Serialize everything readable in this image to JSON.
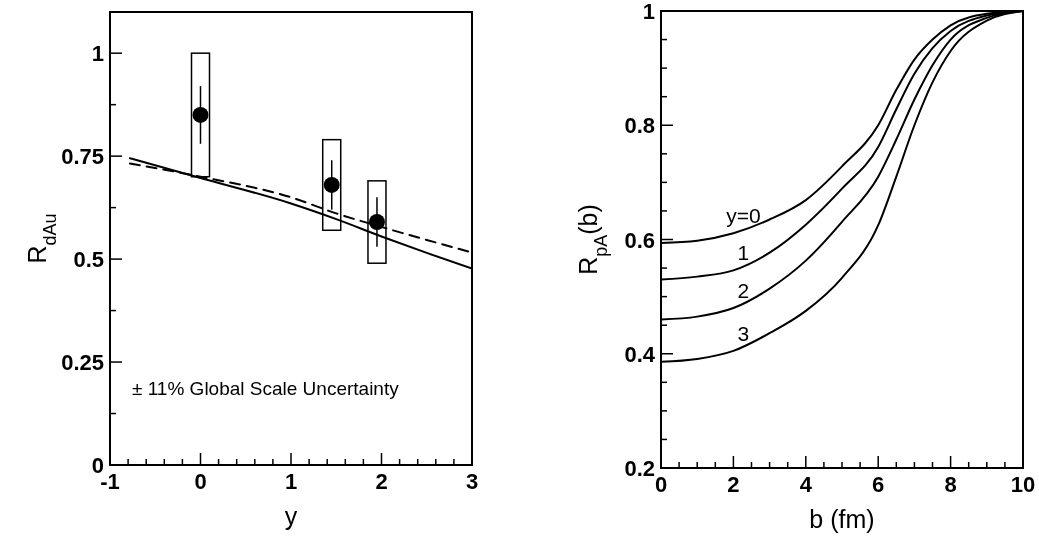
{
  "chart_data": [
    {
      "type": "line",
      "xlabel": "y",
      "ylabel": "R$_{dAu}$",
      "xlim": [
        -1,
        3
      ],
      "ylim": [
        0,
        1.1
      ],
      "grid": false,
      "legend": false,
      "xticks": [
        -1,
        {
          "value": -0.8,
          "label": null
        },
        {
          "value": -0.6,
          "label": null
        },
        {
          "value": -0.4,
          "label": null
        },
        {
          "value": -0.2,
          "label": null
        },
        0,
        {
          "value": 0.2,
          "label": null
        },
        {
          "value": 0.4,
          "label": null
        },
        {
          "value": 0.6,
          "label": null
        },
        {
          "value": 0.8,
          "label": null
        },
        1,
        {
          "value": 1.2,
          "label": null
        },
        {
          "value": 1.4,
          "label": null
        },
        {
          "value": 1.6,
          "label": null
        },
        {
          "value": 1.8,
          "label": null
        },
        2,
        {
          "value": 2.2,
          "label": null
        },
        {
          "value": 2.4,
          "label": null
        },
        {
          "value": 2.6,
          "label": null
        },
        {
          "value": 2.8,
          "label": null
        },
        3
      ],
      "yticks": [
        0,
        {
          "value": 0.125,
          "label": null
        },
        0.25,
        {
          "value": 0.375,
          "label": null
        },
        0.5,
        {
          "value": 0.625,
          "label": null
        },
        0.75,
        {
          "value": 0.875,
          "label": null
        },
        1
      ],
      "annotations": [
        "± 11% Global Scale Uncertainty"
      ],
      "series": [
        {
          "type": "bar",
          "x": [
            0,
            1.45,
            1.95
          ],
          "base": [
            0.7,
            0.57,
            0.49
          ],
          "values": [
            0.3,
            0.22,
            0.2
          ],
          "color": "#ffffff"
        },
        {
          "type": "scatter",
          "x": [
            0,
            1.45,
            1.95
          ],
          "values": [
            0.85,
            0.68,
            0.59
          ],
          "errors": [
            [
              0.78,
              0.92
            ],
            [
              0.62,
              0.74
            ],
            [
              0.53,
              0.65
            ]
          ],
          "color": "#000000",
          "marker": "circle"
        },
        {
          "type": "line",
          "x": [
            -0.78,
            0,
            1,
            1.5,
            2,
            2.5,
            3
          ],
          "values": [
            0.745,
            0.697,
            0.635,
            0.597,
            0.555,
            0.515,
            0.477
          ],
          "color": "#000000",
          "line_style": "solid"
        },
        {
          "type": "line",
          "x": [
            -0.78,
            0,
            1,
            1.5,
            2,
            3
          ],
          "values": [
            0.732,
            0.7,
            0.65,
            0.611,
            0.578,
            0.516
          ],
          "color": "#000000",
          "line_style": "dashed"
        }
      ]
    },
    {
      "type": "line",
      "xlabel": "b (fm)",
      "ylabel": "R$_{pA}$(b)",
      "xlim": [
        0,
        10
      ],
      "ylim": [
        0.2,
        1
      ],
      "grid": false,
      "legend": false,
      "xticks": [
        0,
        {
          "value": 0.5,
          "label": null
        },
        {
          "value": 1,
          "label": null
        },
        {
          "value": 1.5,
          "label": null
        },
        2,
        {
          "value": 2.5,
          "label": null
        },
        {
          "value": 3,
          "label": null
        },
        {
          "value": 3.5,
          "label": null
        },
        4,
        {
          "value": 4.5,
          "label": null
        },
        {
          "value": 5,
          "label": null
        },
        {
          "value": 5.5,
          "label": null
        },
        6,
        {
          "value": 6.5,
          "label": null
        },
        {
          "value": 7,
          "label": null
        },
        {
          "value": 7.5,
          "label": null
        },
        8,
        {
          "value": 8.5,
          "label": null
        },
        {
          "value": 9,
          "label": null
        },
        {
          "value": 9.5,
          "label": null
        },
        10
      ],
      "yticks": [
        0.2,
        {
          "value": 0.25,
          "label": null
        },
        {
          "value": 0.3,
          "label": null
        },
        {
          "value": 0.35,
          "label": null
        },
        0.4,
        {
          "value": 0.45,
          "label": null
        },
        {
          "value": 0.5,
          "label": null
        },
        {
          "value": 0.55,
          "label": null
        },
        0.6,
        {
          "value": 0.65,
          "label": null
        },
        {
          "value": 0.7,
          "label": null
        },
        {
          "value": 0.75,
          "label": null
        },
        0.8,
        {
          "value": 0.85,
          "label": null
        },
        {
          "value": 0.9,
          "label": null
        },
        {
          "value": 0.95,
          "label": null
        },
        1
      ],
      "x": [
        0,
        1,
        2,
        3,
        4,
        5,
        6,
        6.5,
        7,
        7.5,
        8,
        9,
        10
      ],
      "series": [
        {
          "name": "y=0",
          "color": "#000000",
          "values": [
            0.594,
            0.598,
            0.611,
            0.635,
            0.669,
            0.728,
            0.8,
            0.862,
            0.915,
            0.95,
            0.975,
            0.995,
            1
          ]
        },
        {
          "name": "1",
          "color": "#000000",
          "values": [
            0.53,
            0.535,
            0.546,
            0.577,
            0.626,
            0.689,
            0.762,
            0.828,
            0.89,
            0.935,
            0.965,
            0.992,
            1
          ]
        },
        {
          "name": "2",
          "color": "#000000",
          "values": [
            0.46,
            0.465,
            0.48,
            0.514,
            0.563,
            0.631,
            0.71,
            0.775,
            0.845,
            0.905,
            0.95,
            0.988,
            1
          ]
        },
        {
          "name": "3",
          "color": "#000000",
          "values": [
            0.386,
            0.391,
            0.405,
            0.436,
            0.475,
            0.533,
            0.625,
            0.71,
            0.8,
            0.875,
            0.93,
            0.983,
            1
          ]
        }
      ]
    }
  ]
}
